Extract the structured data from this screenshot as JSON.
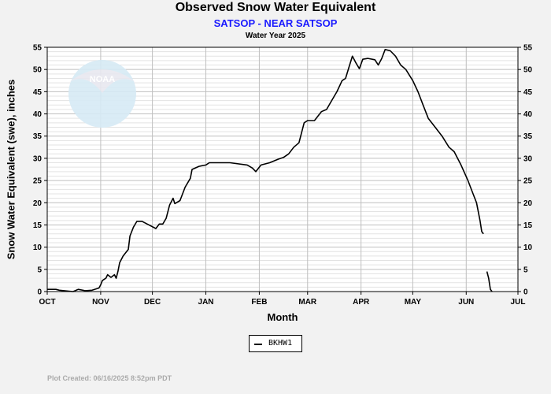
{
  "chart_data": {
    "type": "line",
    "title": "Observed Snow Water Equivalent",
    "subtitle": "SATSOP - NEAR SATSOP",
    "subtitle2": "Water Year 2025",
    "xlabel": "Month",
    "ylabel": "Snow Water Equivalent (swe),  inches",
    "ylim": [
      0,
      55
    ],
    "yticks": [
      0,
      5,
      10,
      15,
      20,
      25,
      30,
      35,
      40,
      45,
      50,
      55
    ],
    "xlim": [
      "2024-10-01",
      "2025-07-01"
    ],
    "month_ticks": [
      {
        "label": "OCT",
        "date": "2024-10-01"
      },
      {
        "label": "NOV",
        "date": "2024-11-01"
      },
      {
        "label": "DEC",
        "date": "2024-12-01"
      },
      {
        "label": "JAN",
        "date": "2025-01-01"
      },
      {
        "label": "FEB",
        "date": "2025-02-01"
      },
      {
        "label": "MAR",
        "date": "2025-03-01"
      },
      {
        "label": "APR",
        "date": "2025-04-01"
      },
      {
        "label": "MAY",
        "date": "2025-05-01"
      },
      {
        "label": "JUN",
        "date": "2025-06-01"
      },
      {
        "label": "JUL",
        "date": "2025-07-01"
      }
    ],
    "grid": true,
    "legend_position": "bottom-center",
    "series": [
      {
        "name": "BKHW1",
        "color": "#000000",
        "segments": [
          [
            [
              "2024-10-01",
              0.5
            ],
            [
              "2024-10-06",
              0.5
            ],
            [
              "2024-10-08",
              0.3
            ],
            [
              "2024-10-13",
              0.1
            ],
            [
              "2024-10-16",
              0.0
            ],
            [
              "2024-10-19",
              0.5
            ],
            [
              "2024-10-23",
              0.2
            ],
            [
              "2024-10-27",
              0.3
            ],
            [
              "2024-10-31",
              0.8
            ],
            [
              "2024-11-01",
              1.5
            ],
            [
              "2024-11-02",
              2.5
            ],
            [
              "2024-11-04",
              3.0
            ],
            [
              "2024-11-05",
              3.8
            ],
            [
              "2024-11-07",
              3.2
            ],
            [
              "2024-11-09",
              3.8
            ],
            [
              "2024-11-10",
              3.0
            ],
            [
              "2024-11-11",
              4.5
            ],
            [
              "2024-11-12",
              6.5
            ],
            [
              "2024-11-14",
              8.0
            ],
            [
              "2024-11-17",
              9.5
            ],
            [
              "2024-11-18",
              12.5
            ],
            [
              "2024-11-20",
              14.5
            ],
            [
              "2024-11-22",
              15.8
            ],
            [
              "2024-11-25",
              15.8
            ],
            [
              "2024-11-28",
              15.2
            ],
            [
              "2024-12-03",
              14.2
            ],
            [
              "2024-12-05",
              15.2
            ],
            [
              "2024-12-07",
              15.2
            ],
            [
              "2024-12-09",
              16.5
            ],
            [
              "2024-12-11",
              19.5
            ],
            [
              "2024-12-13",
              21.0
            ],
            [
              "2024-12-14",
              19.8
            ],
            [
              "2024-12-17",
              20.5
            ],
            [
              "2024-12-20",
              23.5
            ],
            [
              "2024-12-23",
              25.5
            ],
            [
              "2024-12-24",
              27.5
            ],
            [
              "2024-12-28",
              28.2
            ],
            [
              "2025-01-01",
              28.5
            ],
            [
              "2025-01-03",
              29.0
            ],
            [
              "2025-01-15",
              29.0
            ],
            [
              "2025-01-25",
              28.5
            ],
            [
              "2025-01-28",
              27.8
            ],
            [
              "2025-01-30",
              27.0
            ],
            [
              "2025-02-02",
              28.5
            ],
            [
              "2025-02-07",
              29.0
            ],
            [
              "2025-02-12",
              29.8
            ],
            [
              "2025-02-15",
              30.2
            ],
            [
              "2025-02-18",
              31.0
            ],
            [
              "2025-02-21",
              32.5
            ],
            [
              "2025-02-24",
              33.5
            ],
            [
              "2025-02-27",
              38.0
            ],
            [
              "2025-03-01",
              38.5
            ],
            [
              "2025-03-05",
              38.5
            ],
            [
              "2025-03-09",
              40.5
            ],
            [
              "2025-03-12",
              41.0
            ],
            [
              "2025-03-15",
              43.0
            ],
            [
              "2025-03-18",
              45.0
            ],
            [
              "2025-03-21",
              47.5
            ],
            [
              "2025-03-23",
              48.0
            ],
            [
              "2025-03-25",
              50.5
            ],
            [
              "2025-03-27",
              53.0
            ],
            [
              "2025-03-29",
              51.5
            ],
            [
              "2025-03-31",
              50.2
            ],
            [
              "2025-04-02",
              52.3
            ],
            [
              "2025-04-05",
              52.5
            ],
            [
              "2025-04-09",
              52.2
            ],
            [
              "2025-04-11",
              51.0
            ],
            [
              "2025-04-13",
              52.5
            ],
            [
              "2025-04-15",
              54.5
            ],
            [
              "2025-04-18",
              54.2
            ],
            [
              "2025-04-21",
              53.0
            ],
            [
              "2025-04-24",
              51.0
            ],
            [
              "2025-04-27",
              50.0
            ],
            [
              "2025-05-01",
              47.5
            ],
            [
              "2025-05-04",
              45.0
            ],
            [
              "2025-05-07",
              42.0
            ],
            [
              "2025-05-10",
              39.0
            ],
            [
              "2025-05-14",
              37.0
            ],
            [
              "2025-05-18",
              35.0
            ],
            [
              "2025-05-22",
              32.5
            ],
            [
              "2025-05-25",
              31.5
            ],
            [
              "2025-05-29",
              28.5
            ],
            [
              "2025-06-02",
              25.0
            ],
            [
              "2025-06-05",
              22.0
            ],
            [
              "2025-06-07",
              20.0
            ],
            [
              "2025-06-09",
              16.0
            ],
            [
              "2025-06-10",
              13.5
            ],
            [
              "2025-06-11",
              13.0
            ]
          ],
          [
            [
              "2025-06-13",
              4.5
            ],
            [
              "2025-06-14",
              3.0
            ],
            [
              "2025-06-15",
              0.5
            ],
            [
              "2025-06-16",
              0.0
            ]
          ]
        ]
      }
    ]
  },
  "footer": "Plot Created:  06/16/2025 8:52pm PDT",
  "logo_text": "NOAA",
  "colors": {
    "subtitle": "#1a1aff",
    "background": "#f2f2f2",
    "plot_bg": "#ffffff",
    "grid": "#cccccc",
    "logo": "#cfe5f2"
  }
}
